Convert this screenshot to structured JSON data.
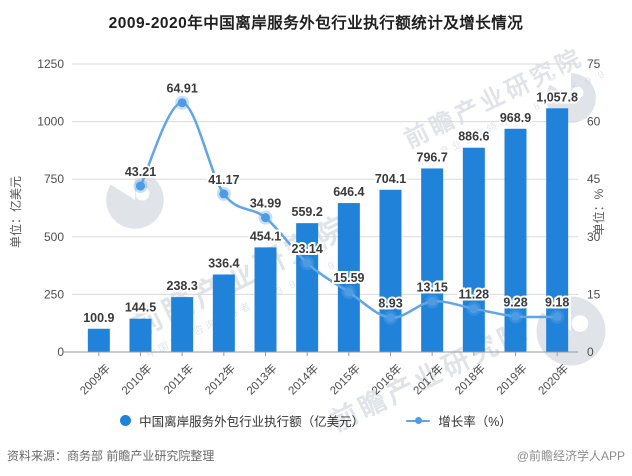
{
  "title": "2009-2020年中国离岸服务外包行业执行额统计及增长情况",
  "chart_data": {
    "type": "bar",
    "categories": [
      "2009年",
      "2010年",
      "2011年",
      "2012年",
      "2013年",
      "2014年",
      "2015年",
      "2016年",
      "2017年",
      "2018年",
      "2019年",
      "2020年"
    ],
    "series": [
      {
        "name": "中国离岸服务外包行业执行额（亿美元）",
        "type": "bar",
        "axis": "left",
        "values": [
          100.9,
          144.5,
          238.3,
          336.4,
          454.1,
          559.2,
          646.4,
          704.1,
          796.7,
          886.6,
          968.9,
          1057.8
        ],
        "labels": [
          "100.9",
          "144.5",
          "238.3",
          "336.4",
          "454.1",
          "559.2",
          "646.4",
          "704.1",
          "796.7",
          "886.6",
          "968.9",
          "1,057.8"
        ]
      },
      {
        "name": "增长率（%）",
        "type": "line",
        "axis": "right",
        "start_index": 1,
        "values": [
          43.21,
          64.91,
          41.17,
          34.99,
          23.14,
          15.59,
          8.93,
          13.15,
          11.28,
          9.28,
          9.18
        ],
        "labels": [
          "43.21",
          "64.91",
          "41.17",
          "34.99",
          "23.14",
          "15.59",
          "8.93",
          "13.15",
          "11.28",
          "9.28",
          "9.18"
        ]
      }
    ],
    "left_axis": {
      "title": "单位：亿美元",
      "ticks": [
        "0",
        "250",
        "500",
        "750",
        "1000",
        "1250"
      ],
      "range": [
        0,
        1250
      ]
    },
    "right_axis": {
      "title": "单位：%",
      "ticks": [
        "0",
        "15",
        "30",
        "45",
        "60",
        "75"
      ],
      "range": [
        0,
        75
      ]
    },
    "grid": true,
    "legend_position": "bottom"
  },
  "legend": {
    "bar_label": "中国离岸服务外包行业执行额（亿美元）",
    "line_label": "增长率（%）"
  },
  "footer": {
    "source": "资料来源：商务部 前瞻产业研究院整理",
    "credit": "@前瞻经济学人APP"
  },
  "watermark": {
    "text": "前瞻产业研究院",
    "sub": "中国产业咨询领导者　8 3 9 5 9 9"
  },
  "colors": {
    "bar": "#2182D9",
    "line": "#61A5E4",
    "marker": "#4D9BE2",
    "marker_halo": "rgba(97,165,228,0.35)",
    "grid": "#DADADA",
    "axis": "#9B9B9B",
    "tick_text": "#4D4D4D",
    "axis_title": "#595959",
    "label": "#3A3A3A"
  }
}
